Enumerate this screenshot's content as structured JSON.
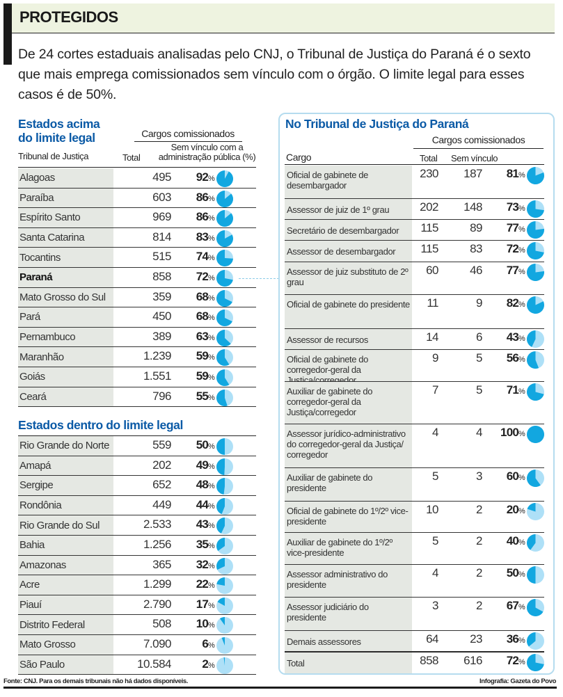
{
  "title": "PROTEGIDOS",
  "intro": "De 24 cortes estaduais analisadas pelo CNJ, o Tribunal de Justiça do Paraná é o sexto que mais emprega comissionados sem vínculo com o órgão. O limite legal para esses casos é de 50%.",
  "colors": {
    "accent": "#0b5aa6",
    "pie_fill": "#12a7e0",
    "pie_base": "#aee0f7",
    "panel_border": "#b5dcef",
    "cell_bg": "#e5e8e3"
  },
  "left": {
    "section_above": "Estados acima do limite legal",
    "group_header": "Cargos comissionados",
    "col_tribunal": "Tribunal de Justiça",
    "col_total": "Total",
    "col_pct_1": "Sem vínculo com a",
    "col_pct_2": "administração pública (%)",
    "section_within": "Estados dentro do limite legal",
    "pct_unit": "%"
  },
  "right": {
    "title": "No Tribunal de Justiça do Paraná",
    "group_header": "Cargos comissionados",
    "col_cargo": "Cargo",
    "col_total": "Total",
    "col_sem": "Sem vínculo"
  },
  "footer": {
    "source": "Fonte: CNJ. Para os demais tribunais não há dados disponíveis.",
    "credit": "Infografia: Gazeta do Povo"
  },
  "chart_data": [
    {
      "type": "table",
      "title": "Estados acima do limite legal",
      "columns": [
        "Tribunal de Justiça",
        "Total",
        "Sem vínculo com a administração pública (%)"
      ],
      "rows": [
        {
          "name": "Alagoas",
          "total": "495",
          "pct": 92
        },
        {
          "name": "Paraíba",
          "total": "603",
          "pct": 86
        },
        {
          "name": "Espírito Santo",
          "total": "969",
          "pct": 86
        },
        {
          "name": "Santa Catarina",
          "total": "814",
          "pct": 83
        },
        {
          "name": "Tocantins",
          "total": "515",
          "pct": 74
        },
        {
          "name": "Paraná",
          "total": "858",
          "pct": 72,
          "highlight": true
        },
        {
          "name": "Mato Grosso do Sul",
          "total": "359",
          "pct": 68
        },
        {
          "name": "Pará",
          "total": "450",
          "pct": 68
        },
        {
          "name": "Pernambuco",
          "total": "389",
          "pct": 63
        },
        {
          "name": "Maranhão",
          "total": "1.239",
          "pct": 59
        },
        {
          "name": "Goiás",
          "total": "1.551",
          "pct": 59
        },
        {
          "name": "Ceará",
          "total": "796",
          "pct": 55
        }
      ]
    },
    {
      "type": "table",
      "title": "Estados dentro do limite legal",
      "columns": [
        "Tribunal de Justiça",
        "Total",
        "Sem vínculo com a administração pública (%)"
      ],
      "rows": [
        {
          "name": "Rio Grande do Norte",
          "total": "559",
          "pct": 50
        },
        {
          "name": "Amapá",
          "total": "202",
          "pct": 49
        },
        {
          "name": "Sergipe",
          "total": "652",
          "pct": 48
        },
        {
          "name": "Rondônia",
          "total": "449",
          "pct": 44
        },
        {
          "name": "Rio Grande do Sul",
          "total": "2.533",
          "pct": 43
        },
        {
          "name": "Bahia",
          "total": "1.256",
          "pct": 35
        },
        {
          "name": "Amazonas",
          "total": "365",
          "pct": 32
        },
        {
          "name": "Acre",
          "total": "1.299",
          "pct": 22
        },
        {
          "name": "Piauí",
          "total": "2.790",
          "pct": 17
        },
        {
          "name": "Distrito Federal",
          "total": "508",
          "pct": 10
        },
        {
          "name": "Mato Grosso",
          "total": "7.090",
          "pct": 6
        },
        {
          "name": "São Paulo",
          "total": "10.584",
          "pct": 2
        }
      ]
    },
    {
      "type": "table",
      "title": "No Tribunal de Justiça do Paraná",
      "columns": [
        "Cargo",
        "Total",
        "Sem vínculo",
        "%"
      ],
      "rows": [
        {
          "name": "Oficial de gabinete de desembargador",
          "total": "230",
          "sem": "187",
          "pct": 81
        },
        {
          "name": "Assessor de juiz de 1º grau",
          "total": "202",
          "sem": "148",
          "pct": 73
        },
        {
          "name": "Secretário de desembargador",
          "total": "115",
          "sem": "89",
          "pct": 77
        },
        {
          "name": "Assessor de desembargador",
          "total": "115",
          "sem": "83",
          "pct": 72
        },
        {
          "name": "Assessor de juiz substituto de 2º grau",
          "total": "60",
          "sem": "46",
          "pct": 77
        },
        {
          "name": "Oficial de gabinete do presidente",
          "total": "11",
          "sem": "9",
          "pct": 82
        },
        {
          "name": "Assessor de recursos",
          "total": "14",
          "sem": "6",
          "pct": 43
        },
        {
          "name": "Oficial de gabinete do corregedor-geral da Justiça/corregedor",
          "total": "9",
          "sem": "5",
          "pct": 56
        },
        {
          "name": "Auxiliar de gabinete do corregedor-geral da Justiça/corregedor",
          "total": "7",
          "sem": "5",
          "pct": 71
        },
        {
          "name": "Assessor jurídico-administrativo do corregedor-geral da Justiça/ corregedor",
          "total": "4",
          "sem": "4",
          "pct": 100
        },
        {
          "name": "Auxiliar de gabinete do presidente",
          "total": "5",
          "sem": "3",
          "pct": 60
        },
        {
          "name": "Oficial de gabinete do 1º/2º vice-presidente",
          "total": "10",
          "sem": "2",
          "pct": 20
        },
        {
          "name": "Auxiliar de gabinete do 1º/2º vice-presidente",
          "total": "5",
          "sem": "2",
          "pct": 40
        },
        {
          "name": "Assessor administrativo do presidente",
          "total": "4",
          "sem": "2",
          "pct": 50
        },
        {
          "name": "Assessor judiciário do presidente",
          "total": "3",
          "sem": "2",
          "pct": 67
        },
        {
          "name": "Demais assessores",
          "total": "64",
          "sem": "23",
          "pct": 36
        },
        {
          "name": "Total",
          "total": "858",
          "sem": "616",
          "pct": 72,
          "is_total": true
        }
      ]
    }
  ]
}
